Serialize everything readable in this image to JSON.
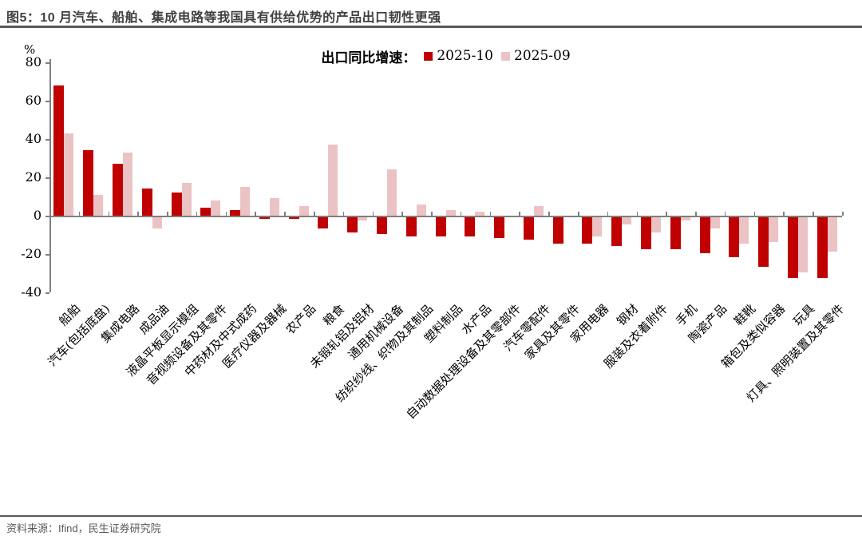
{
  "title": "图5：10 月汽车、船舶、集成电路等我国具有供给优势的产品出口韧性更强",
  "footer": "资料来源：Ifind，民生证券研究院",
  "legend": {
    "prefix": "出口同比增速：",
    "series1_label": "2025-10",
    "series2_label": "2025-09"
  },
  "colors": {
    "series1": "#C00000",
    "series2": "#EBC3C5",
    "axis": "#7F7F7F",
    "title_text": "#404040",
    "footer_text": "#595959"
  },
  "chart_data": {
    "type": "bar",
    "title": "出口同比增速",
    "unit_label": "%",
    "ylim": [
      -40,
      80
    ],
    "yticks": [
      80,
      60,
      40,
      20,
      0,
      -20,
      -40
    ],
    "grid": false,
    "legend_position": "top-center",
    "categories": [
      "船舶",
      "汽车(包括底盘)",
      "集成电路",
      "成品油",
      "液晶平板显示模组",
      "音视频设备及其零件",
      "中药材及中式成药",
      "医疗仪器及器械",
      "农产品",
      "粮食",
      "未锻轧铝及铝材",
      "通用机械设备",
      "纺织纱线、织物及其制品",
      "塑料制品",
      "水产品",
      "自动数据处理设备及其零部件",
      "汽车零配件",
      "家具及其零件",
      "家用电器",
      "钢材",
      "服装及衣着附件",
      "手机",
      "陶瓷产品",
      "鞋靴",
      "箱包及类似容器",
      "玩具",
      "灯具、照明装置及其零件"
    ],
    "series": [
      {
        "name": "2025-10",
        "color": "#C00000",
        "values": [
          68,
          34,
          27,
          14,
          12,
          4,
          3,
          -1,
          -1,
          -6,
          -8,
          -9,
          -10,
          -10,
          -10,
          -11,
          -12,
          -14,
          -14,
          -15,
          -17,
          -17,
          -19,
          -21,
          -26,
          -32,
          -32
        ]
      },
      {
        "name": "2025-09",
        "color": "#EBC3C5",
        "values": [
          43,
          11,
          33,
          -6,
          17,
          8,
          15,
          9,
          5,
          37,
          -2,
          24,
          6,
          3,
          2,
          0,
          5,
          0,
          -10,
          -4,
          -8,
          -2,
          -6,
          -14,
          -13,
          -29,
          -18
        ]
      }
    ]
  }
}
